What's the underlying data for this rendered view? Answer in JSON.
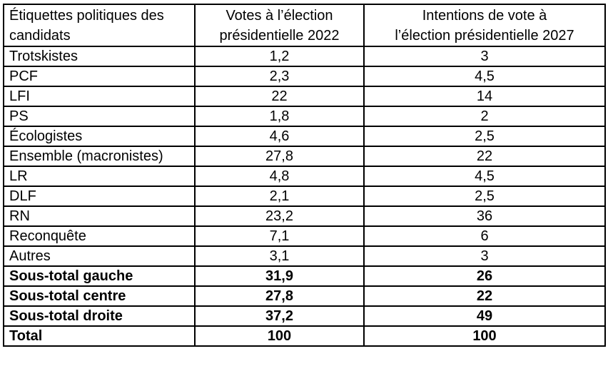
{
  "page": {
    "background_color": "#ffffff",
    "text_color": "#000000",
    "border_color": "#000000"
  },
  "chart_data": {
    "type": "table",
    "title": "",
    "columns": [
      "Étiquettes politiques des candidats",
      "Votes à l’élection présidentielle 2022",
      "Intentions de vote à l’élection présidentielle 2027"
    ],
    "rows": [
      [
        "Trotskistes",
        "1,2",
        "3"
      ],
      [
        "PCF",
        "2,3",
        "4,5"
      ],
      [
        "LFI",
        "22",
        "14"
      ],
      [
        "PS",
        "1,8",
        "2"
      ],
      [
        "Écologistes",
        "4,6",
        "2,5"
      ],
      [
        "Ensemble (macronistes)",
        "27,8",
        "22"
      ],
      [
        "LR",
        "4,8",
        "4,5"
      ],
      [
        "DLF",
        "2,1",
        "2,5"
      ],
      [
        "RN",
        "23,2",
        "36"
      ],
      [
        "Reconquête",
        "7,1",
        "6"
      ],
      [
        "Autres",
        "3,1",
        "3"
      ],
      [
        "Sous-total gauche",
        "31,9",
        "26"
      ],
      [
        "Sous-total centre",
        "27,8",
        "22"
      ],
      [
        "Sous-total droite",
        "37,2",
        "49"
      ],
      [
        "Total",
        "100",
        "100"
      ]
    ],
    "bold_row_indices": [
      11,
      12,
      13,
      14
    ],
    "layout": {
      "grid": "full black borders",
      "label_column_align": "left",
      "value_columns_align": "center",
      "decimal_separator": ","
    }
  },
  "table": {
    "header_lines": [
      [
        "Étiquettes politiques des",
        "candidats"
      ],
      [
        "Votes à l’élection",
        "présidentielle 2022"
      ],
      [
        "Intentions de vote à",
        "l’élection présidentielle 2027"
      ]
    ]
  }
}
